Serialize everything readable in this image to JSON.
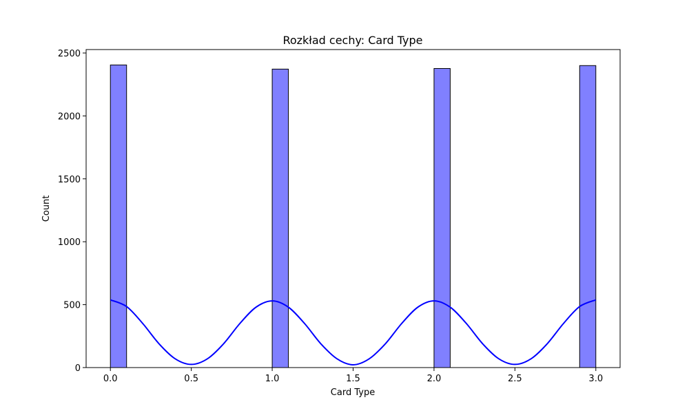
{
  "chart_data": {
    "type": "bar",
    "title": "Rozkład cechy: Card Type",
    "xlabel": "Card Type",
    "ylabel": "Count",
    "xlim": [
      -0.15,
      3.15
    ],
    "ylim": [
      0,
      2500
    ],
    "xticks": [
      "0.0",
      "0.5",
      "1.0",
      "1.5",
      "2.0",
      "2.5",
      "3.0"
    ],
    "yticks": [
      "0",
      "500",
      "1000",
      "1500",
      "2000",
      "2500"
    ],
    "bins": [
      {
        "x0": 0.0,
        "x1": 0.1,
        "count": 2405
      },
      {
        "x0": 1.0,
        "x1": 1.1,
        "count": 2372
      },
      {
        "x0": 2.0,
        "x1": 2.1,
        "count": 2377
      },
      {
        "x0": 2.9,
        "x1": 3.0,
        "count": 2400
      }
    ],
    "kde": {
      "x": [
        0.0,
        0.1,
        0.2,
        0.3,
        0.4,
        0.5,
        0.6,
        0.7,
        0.8,
        0.9,
        1.0,
        1.1,
        1.2,
        1.3,
        1.4,
        1.5,
        1.6,
        1.7,
        1.8,
        1.9,
        2.0,
        2.1,
        2.2,
        2.3,
        2.4,
        2.5,
        2.6,
        2.7,
        2.8,
        2.9,
        3.0
      ],
      "y": [
        538,
        485,
        350,
        190,
        70,
        25,
        70,
        190,
        350,
        480,
        530,
        480,
        350,
        190,
        70,
        22,
        70,
        190,
        350,
        480,
        530,
        480,
        350,
        190,
        70,
        25,
        70,
        190,
        350,
        485,
        538
      ]
    },
    "grid": false,
    "legend": "none",
    "colors": {
      "bar_fill": "#8080ff",
      "bar_edge": "#000000",
      "kde_line": "#0000ff"
    }
  }
}
